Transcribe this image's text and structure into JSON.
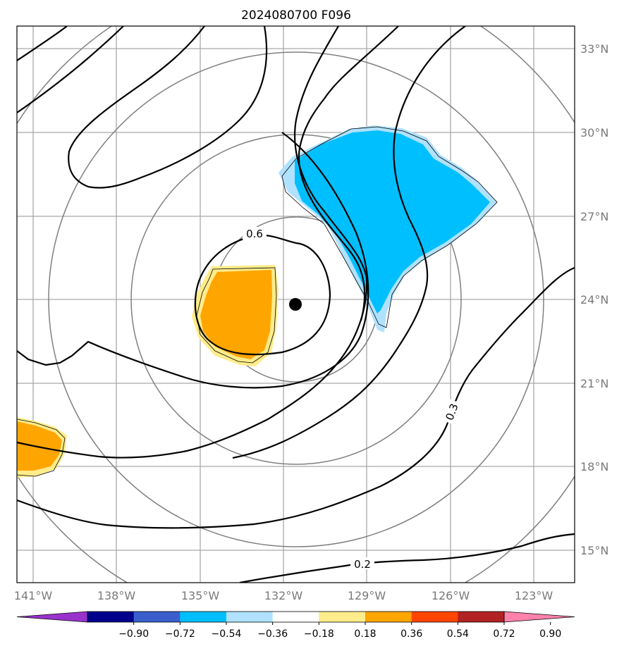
{
  "title": "2024080700 F096",
  "lat_labels": [
    "33°N",
    "30°N",
    "27°N",
    "24°N",
    "21°N",
    "18°N",
    "15°N"
  ],
  "lon_labels": [
    "141°W",
    "138°W",
    "135°W",
    "132°W",
    "129°W",
    "126°W",
    "123°W"
  ],
  "contour_labels": [
    "0.6",
    "0.3",
    "0.2"
  ],
  "colorbar": {
    "ticks": [
      "−0.90",
      "−0.72",
      "−0.54",
      "−0.36",
      "−0.18",
      "0.18",
      "0.36",
      "0.54",
      "0.72",
      "0.90"
    ],
    "colors": [
      "#9932cc",
      "#00008b",
      "#3a5fcd",
      "#00bfff",
      "#b0e2ff",
      "#ffffff",
      "#ffec8b",
      "#ffa500",
      "#ff4500",
      "#b22222",
      "#ff82ab"
    ]
  },
  "storm_center": {
    "lat": 23.9,
    "lon": "131.6°W"
  }
}
